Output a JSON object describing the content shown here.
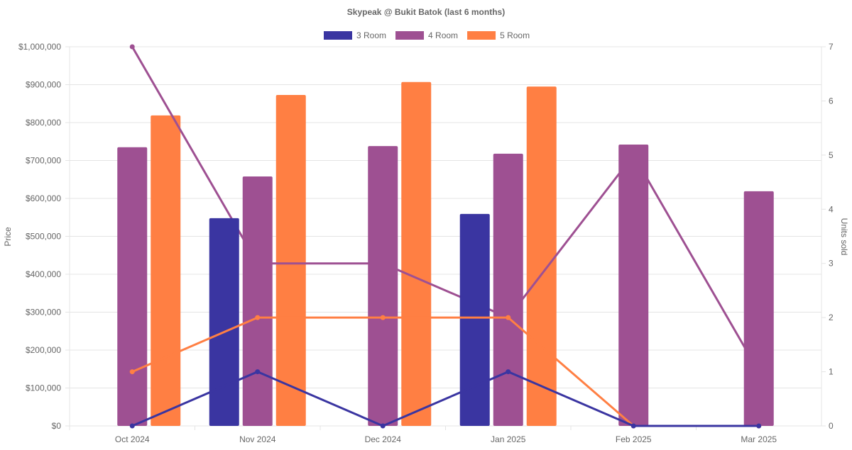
{
  "chart_data": {
    "type": "bar",
    "title": "Skypeak @ Bukit Batok (last 6 months)",
    "categories": [
      "Oct 2024",
      "Nov 2024",
      "Dec 2024",
      "Jan 2025",
      "Feb 2025",
      "Mar 2025"
    ],
    "ylabel": "Price",
    "y2label": "Units sold",
    "ylim": [
      0,
      1000000
    ],
    "y2lim": [
      0,
      7
    ],
    "yticks": [
      "$0",
      "$100,000",
      "$200,000",
      "$300,000",
      "$400,000",
      "$500,000",
      "$600,000",
      "$700,000",
      "$800,000",
      "$900,000",
      "$1,000,000"
    ],
    "y2ticks": [
      "0",
      "1",
      "2",
      "3",
      "4",
      "5",
      "6",
      "7"
    ],
    "legend_position": "top",
    "grid": true,
    "series": [
      {
        "name": "3 Room",
        "color": "#3a35a1",
        "price": [
          null,
          548000,
          null,
          559000,
          null,
          null
        ],
        "units": [
          0,
          1,
          0,
          1,
          0,
          0
        ]
      },
      {
        "name": "4 Room",
        "color": "#9e5092",
        "price": [
          735000,
          658000,
          738000,
          718000,
          742000,
          619000
        ],
        "units": [
          7,
          3,
          3,
          2,
          5,
          1
        ]
      },
      {
        "name": "5 Room",
        "color": "#ff7f43",
        "price": [
          819000,
          873000,
          907000,
          895000,
          null,
          null
        ],
        "units": [
          1,
          2,
          2,
          2,
          0,
          0
        ]
      }
    ]
  }
}
